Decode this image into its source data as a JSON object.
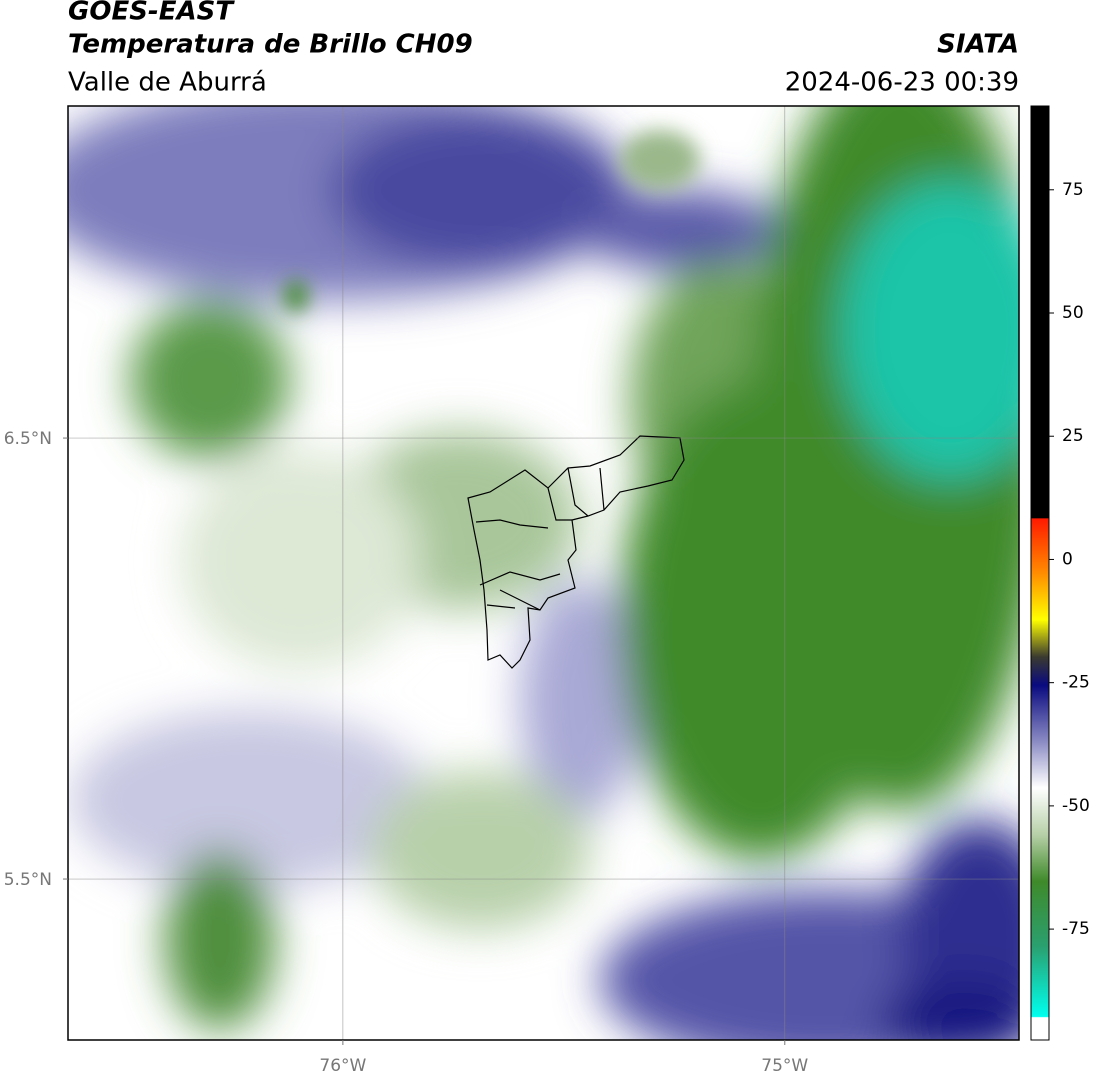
{
  "chart_data": {
    "type": "map",
    "title": "GOES-EAST",
    "subtitle": "Temperatura de Brillo CH09",
    "source": "SIATA",
    "region": "Valle de Aburrá",
    "timestamp": "2024-06-23 00:39",
    "xlim": [
      -76.622,
      -74.47
    ],
    "ylim": [
      5.135,
      7.253
    ],
    "xticks": [
      {
        "value": -76,
        "label": "76°W"
      },
      {
        "value": -75,
        "label": "75°W"
      }
    ],
    "yticks": [
      {
        "value": 6.5,
        "label": "6.5°N"
      },
      {
        "value": 5.5,
        "label": "5.5°N"
      }
    ],
    "grid": true,
    "colorbar": {
      "lim": [
        -97.5,
        92
      ],
      "ticks": [
        75,
        50,
        25,
        0,
        -25,
        -50,
        -75
      ]
    }
  }
}
